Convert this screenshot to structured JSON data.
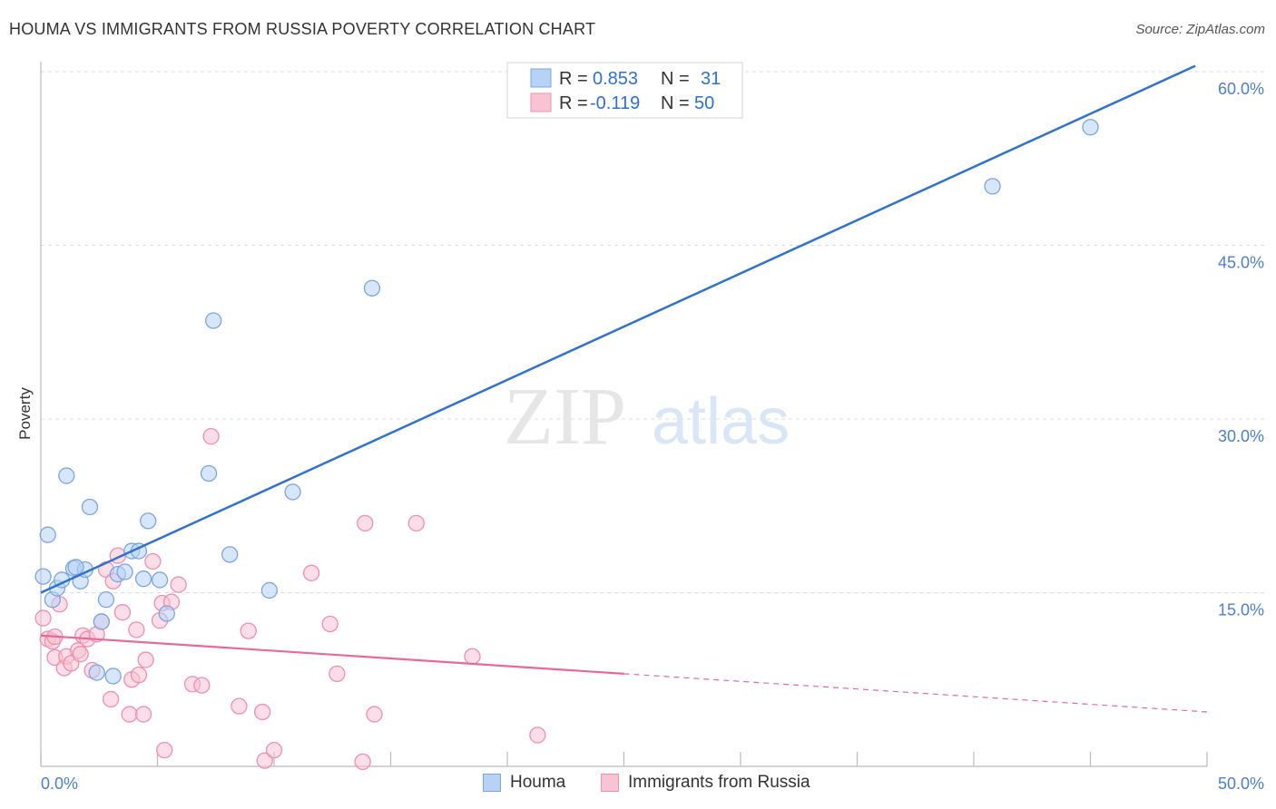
{
  "title": "HOUMA VS IMMIGRANTS FROM RUSSIA POVERTY CORRELATION CHART",
  "source": "Source: ZipAtlas.com",
  "watermark": {
    "zip": "ZIP",
    "atlas": "atlas"
  },
  "colors": {
    "houma_fill": "#b7d2f5",
    "houma_stroke": "#7aa6e0",
    "houma_line": "#2f72d0",
    "russia_fill": "#f8c3d3",
    "russia_stroke": "#ef8fae",
    "russia_line": "#e8689a",
    "grid": "#dcdcdc",
    "tick_label": "#4a7fd1"
  },
  "legend": {
    "rows": [
      {
        "r_label": "R = ",
        "r_value": "0.853",
        "n_label": "N = ",
        "n_value": "31"
      },
      {
        "r_label": "R = ",
        "r_value": "-0.119",
        "n_label": "N = ",
        "n_value": "50"
      }
    ]
  },
  "bottom_legend": {
    "houma": "Houma",
    "russia": "Immigrants from Russia"
  },
  "chart_data": {
    "type": "scatter",
    "title": "HOUMA VS IMMIGRANTS FROM RUSSIA POVERTY CORRELATION CHART",
    "xlabel": "",
    "ylabel": "Poverty",
    "xlim": [
      0,
      50
    ],
    "ylim": [
      0,
      60
    ],
    "x_tick_labels": [
      "0.0%",
      "50.0%"
    ],
    "y_ticks": [
      15,
      30,
      45,
      60
    ],
    "y_tick_labels": [
      "15.0%",
      "30.0%",
      "45.0%",
      "60.0%"
    ],
    "grid": true,
    "legend_position": "top-center",
    "series": [
      {
        "name": "Houma",
        "r": 0.853,
        "n": 31,
        "trend": {
          "x": [
            0,
            49.5
          ],
          "y": [
            15.0,
            60.5
          ],
          "dashed_extension": false
        },
        "points": [
          [
            0.1,
            16.4
          ],
          [
            0.3,
            20.0
          ],
          [
            0.5,
            14.4
          ],
          [
            0.7,
            15.4
          ],
          [
            0.9,
            16.1
          ],
          [
            1.1,
            25.1
          ],
          [
            1.4,
            17.1
          ],
          [
            1.7,
            16.0
          ],
          [
            1.9,
            17.0
          ],
          [
            2.1,
            22.4
          ],
          [
            2.4,
            8.1
          ],
          [
            2.6,
            12.5
          ],
          [
            2.8,
            14.4
          ],
          [
            3.1,
            7.8
          ],
          [
            3.3,
            16.6
          ],
          [
            3.6,
            16.8
          ],
          [
            3.9,
            18.6
          ],
          [
            4.2,
            18.6
          ],
          [
            4.4,
            16.2
          ],
          [
            4.6,
            21.2
          ],
          [
            5.1,
            16.1
          ],
          [
            5.4,
            13.2
          ],
          [
            7.2,
            25.3
          ],
          [
            7.4,
            38.5
          ],
          [
            8.1,
            18.3
          ],
          [
            9.8,
            15.2
          ],
          [
            10.8,
            23.7
          ],
          [
            14.2,
            41.3
          ],
          [
            40.8,
            50.1
          ],
          [
            45.0,
            55.2
          ],
          [
            1.5,
            17.2
          ]
        ]
      },
      {
        "name": "Immigrants from Russia",
        "r": -0.119,
        "n": 50,
        "trend": {
          "x": [
            0,
            25,
            50
          ],
          "y": [
            11.3,
            8.0,
            4.7
          ],
          "solid_until": 25
        },
        "points": [
          [
            0.1,
            12.8
          ],
          [
            0.3,
            11.0
          ],
          [
            0.5,
            10.8
          ],
          [
            0.6,
            9.4
          ],
          [
            0.8,
            14.0
          ],
          [
            1.0,
            8.5
          ],
          [
            1.1,
            9.5
          ],
          [
            1.3,
            8.9
          ],
          [
            1.6,
            10.0
          ],
          [
            1.7,
            9.7
          ],
          [
            1.8,
            11.3
          ],
          [
            2.0,
            11.0
          ],
          [
            2.2,
            8.3
          ],
          [
            2.4,
            11.4
          ],
          [
            2.6,
            12.5
          ],
          [
            2.8,
            17.0
          ],
          [
            3.0,
            5.8
          ],
          [
            3.1,
            16.0
          ],
          [
            3.3,
            18.2
          ],
          [
            3.5,
            13.3
          ],
          [
            3.8,
            4.5
          ],
          [
            3.9,
            7.5
          ],
          [
            4.1,
            11.8
          ],
          [
            4.2,
            7.9
          ],
          [
            4.4,
            4.5
          ],
          [
            4.5,
            9.2
          ],
          [
            4.8,
            17.7
          ],
          [
            5.1,
            12.6
          ],
          [
            5.3,
            1.4
          ],
          [
            5.2,
            14.1
          ],
          [
            5.6,
            14.2
          ],
          [
            5.9,
            15.7
          ],
          [
            6.5,
            7.1
          ],
          [
            6.9,
            7.0
          ],
          [
            7.3,
            28.5
          ],
          [
            8.5,
            5.2
          ],
          [
            8.9,
            11.7
          ],
          [
            9.5,
            4.7
          ],
          [
            9.6,
            0.5
          ],
          [
            10.0,
            1.4
          ],
          [
            11.6,
            16.7
          ],
          [
            12.4,
            12.3
          ],
          [
            12.7,
            8.0
          ],
          [
            13.8,
            0.4
          ],
          [
            13.9,
            21.0
          ],
          [
            14.3,
            4.5
          ],
          [
            16.1,
            21.0
          ],
          [
            18.5,
            9.5
          ],
          [
            21.3,
            2.7
          ],
          [
            0.6,
            11.2
          ]
        ]
      }
    ]
  }
}
